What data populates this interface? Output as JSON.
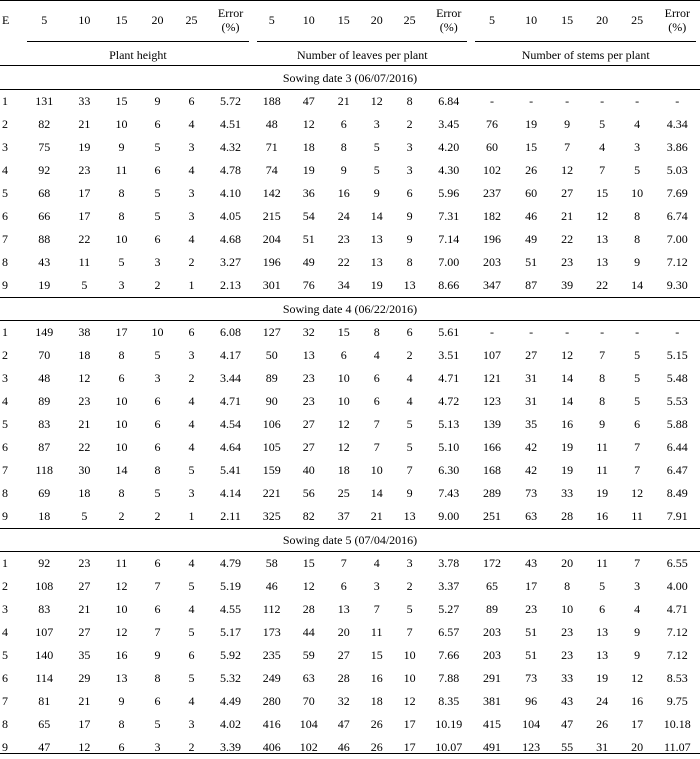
{
  "columns": {
    "e": "E",
    "plant_height": [
      "5",
      "10",
      "15",
      "20",
      "25"
    ],
    "leaves": [
      "5",
      "10",
      "15",
      "20",
      "25"
    ],
    "stems": [
      "5",
      "10",
      "15",
      "20",
      "25"
    ],
    "error_line1": "Error",
    "error_line2": "(%)"
  },
  "groups": [
    "Plant height",
    "Number of leaves per plant",
    "Number of stems per plant"
  ],
  "sections": [
    {
      "title": "Sowing date 3 (06/07/2016)",
      "rows": [
        [
          "1",
          "131",
          "33",
          "15",
          "9",
          "6",
          "5.72",
          "188",
          "47",
          "21",
          "12",
          "8",
          "6.84",
          "-",
          "-",
          "-",
          "-",
          "-",
          "-"
        ],
        [
          "2",
          "82",
          "21",
          "10",
          "6",
          "4",
          "4.51",
          "48",
          "12",
          "6",
          "3",
          "2",
          "3.45",
          "76",
          "19",
          "9",
          "5",
          "4",
          "4.34"
        ],
        [
          "3",
          "75",
          "19",
          "9",
          "5",
          "3",
          "4.32",
          "71",
          "18",
          "8",
          "5",
          "3",
          "4.20",
          "60",
          "15",
          "7",
          "4",
          "3",
          "3.86"
        ],
        [
          "4",
          "92",
          "23",
          "11",
          "6",
          "4",
          "4.78",
          "74",
          "19",
          "9",
          "5",
          "3",
          "4.30",
          "102",
          "26",
          "12",
          "7",
          "5",
          "5.03"
        ],
        [
          "5",
          "68",
          "17",
          "8",
          "5",
          "3",
          "4.10",
          "142",
          "36",
          "16",
          "9",
          "6",
          "5.96",
          "237",
          "60",
          "27",
          "15",
          "10",
          "7.69"
        ],
        [
          "6",
          "66",
          "17",
          "8",
          "5",
          "3",
          "4.05",
          "215",
          "54",
          "24",
          "14",
          "9",
          "7.31",
          "182",
          "46",
          "21",
          "12",
          "8",
          "6.74"
        ],
        [
          "7",
          "88",
          "22",
          "10",
          "6",
          "4",
          "4.68",
          "204",
          "51",
          "23",
          "13",
          "9",
          "7.14",
          "196",
          "49",
          "22",
          "13",
          "8",
          "7.00"
        ],
        [
          "8",
          "43",
          "11",
          "5",
          "3",
          "2",
          "3.27",
          "196",
          "49",
          "22",
          "13",
          "8",
          "7.00",
          "203",
          "51",
          "23",
          "13",
          "9",
          "7.12"
        ],
        [
          "9",
          "19",
          "5",
          "3",
          "2",
          "1",
          "2.13",
          "301",
          "76",
          "34",
          "19",
          "13",
          "8.66",
          "347",
          "87",
          "39",
          "22",
          "14",
          "9.30"
        ]
      ]
    },
    {
      "title": "Sowing date 4 (06/22/2016)",
      "rows": [
        [
          "1",
          "149",
          "38",
          "17",
          "10",
          "6",
          "6.08",
          "127",
          "32",
          "15",
          "8",
          "6",
          "5.61",
          "-",
          "-",
          "-",
          "-",
          "-",
          "-"
        ],
        [
          "2",
          "70",
          "18",
          "8",
          "5",
          "3",
          "4.17",
          "50",
          "13",
          "6",
          "4",
          "2",
          "3.51",
          "107",
          "27",
          "12",
          "7",
          "5",
          "5.15"
        ],
        [
          "3",
          "48",
          "12",
          "6",
          "3",
          "2",
          "3.44",
          "89",
          "23",
          "10",
          "6",
          "4",
          "4.71",
          "121",
          "31",
          "14",
          "8",
          "5",
          "5.48"
        ],
        [
          "4",
          "89",
          "23",
          "10",
          "6",
          "4",
          "4.71",
          "90",
          "23",
          "10",
          "6",
          "4",
          "4.72",
          "123",
          "31",
          "14",
          "8",
          "5",
          "5.53"
        ],
        [
          "5",
          "83",
          "21",
          "10",
          "6",
          "4",
          "4.54",
          "106",
          "27",
          "12",
          "7",
          "5",
          "5.13",
          "139",
          "35",
          "16",
          "9",
          "6",
          "5.88"
        ],
        [
          "6",
          "87",
          "22",
          "10",
          "6",
          "4",
          "4.64",
          "105",
          "27",
          "12",
          "7",
          "5",
          "5.10",
          "166",
          "42",
          "19",
          "11",
          "7",
          "6.44"
        ],
        [
          "7",
          "118",
          "30",
          "14",
          "8",
          "5",
          "5.41",
          "159",
          "40",
          "18",
          "10",
          "7",
          "6.30",
          "168",
          "42",
          "19",
          "11",
          "7",
          "6.47"
        ],
        [
          "8",
          "69",
          "18",
          "8",
          "5",
          "3",
          "4.14",
          "221",
          "56",
          "25",
          "14",
          "9",
          "7.43",
          "289",
          "73",
          "33",
          "19",
          "12",
          "8.49"
        ],
        [
          "9",
          "18",
          "5",
          "2",
          "2",
          "1",
          "2.11",
          "325",
          "82",
          "37",
          "21",
          "13",
          "9.00",
          "251",
          "63",
          "28",
          "16",
          "11",
          "7.91"
        ]
      ]
    },
    {
      "title": "Sowing date 5 (07/04/2016)",
      "rows": [
        [
          "1",
          "92",
          "23",
          "11",
          "6",
          "4",
          "4.79",
          "58",
          "15",
          "7",
          "4",
          "3",
          "3.78",
          "172",
          "43",
          "20",
          "11",
          "7",
          "6.55"
        ],
        [
          "2",
          "108",
          "27",
          "12",
          "7",
          "5",
          "5.19",
          "46",
          "12",
          "6",
          "3",
          "2",
          "3.37",
          "65",
          "17",
          "8",
          "5",
          "3",
          "4.00"
        ],
        [
          "3",
          "83",
          "21",
          "10",
          "6",
          "4",
          "4.55",
          "112",
          "28",
          "13",
          "7",
          "5",
          "5.27",
          "89",
          "23",
          "10",
          "6",
          "4",
          "4.71"
        ],
        [
          "4",
          "107",
          "27",
          "12",
          "7",
          "5",
          "5.17",
          "173",
          "44",
          "20",
          "11",
          "7",
          "6.57",
          "203",
          "51",
          "23",
          "13",
          "9",
          "7.12"
        ],
        [
          "5",
          "140",
          "35",
          "16",
          "9",
          "6",
          "5.92",
          "235",
          "59",
          "27",
          "15",
          "10",
          "7.66",
          "203",
          "51",
          "23",
          "13",
          "9",
          "7.12"
        ],
        [
          "6",
          "114",
          "29",
          "13",
          "8",
          "5",
          "5.32",
          "249",
          "63",
          "28",
          "16",
          "10",
          "7.88",
          "291",
          "73",
          "33",
          "19",
          "12",
          "8.53"
        ],
        [
          "7",
          "81",
          "21",
          "9",
          "6",
          "4",
          "4.49",
          "280",
          "70",
          "32",
          "18",
          "12",
          "8.35",
          "381",
          "96",
          "43",
          "24",
          "16",
          "9.75"
        ],
        [
          "8",
          "65",
          "17",
          "8",
          "5",
          "3",
          "4.02",
          "416",
          "104",
          "47",
          "26",
          "17",
          "10.19",
          "415",
          "104",
          "47",
          "26",
          "17",
          "10.18"
        ],
        [
          "9",
          "47",
          "12",
          "6",
          "3",
          "2",
          "3.39",
          "406",
          "102",
          "46",
          "26",
          "17",
          "10.07",
          "491",
          "123",
          "55",
          "31",
          "20",
          "11.07"
        ]
      ]
    }
  ]
}
